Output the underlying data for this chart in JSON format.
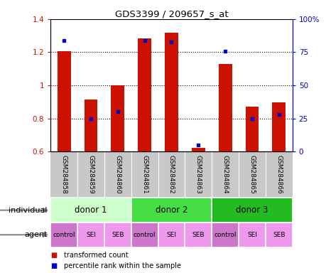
{
  "title": "GDS3399 / 209657_s_at",
  "samples": [
    "GSM284858",
    "GSM284859",
    "GSM284860",
    "GSM284861",
    "GSM284862",
    "GSM284863",
    "GSM284864",
    "GSM284865",
    "GSM284866"
  ],
  "transformed_counts": [
    1.205,
    0.915,
    0.998,
    1.285,
    1.32,
    0.62,
    1.13,
    0.87,
    0.898
  ],
  "percentile_ranks": [
    84,
    25,
    30,
    84,
    83,
    5,
    76,
    25,
    28
  ],
  "bar_bottom": 0.6,
  "ylim_left": [
    0.6,
    1.4
  ],
  "ylim_right": [
    0,
    100
  ],
  "yticks_left": [
    0.6,
    0.8,
    1.0,
    1.2,
    1.4
  ],
  "yticks_right": [
    0,
    25,
    50,
    75,
    100
  ],
  "ytick_labels_right": [
    "0",
    "25",
    "50",
    "75",
    "100%"
  ],
  "bar_color": "#cc1100",
  "percentile_color": "#0000cc",
  "grid_values": [
    0.8,
    1.0,
    1.2
  ],
  "individual_groups": [
    {
      "label": "donor 1",
      "span": [
        0,
        3
      ],
      "color": "#ccffcc"
    },
    {
      "label": "donor 2",
      "span": [
        3,
        6
      ],
      "color": "#44dd44"
    },
    {
      "label": "donor 3",
      "span": [
        6,
        9
      ],
      "color": "#22bb22"
    }
  ],
  "agent_labels": [
    "control",
    "SEI",
    "SEB",
    "control",
    "SEI",
    "SEB",
    "control",
    "SEI",
    "SEB"
  ],
  "agent_color_control": "#cc77cc",
  "agent_color_SEI": "#ee99ee",
  "agent_color_SEB": "#ee99ee",
  "individual_row_label": "individual",
  "agent_row_label": "agent",
  "legend_items": [
    {
      "label": "transformed count",
      "color": "#cc1100"
    },
    {
      "label": "percentile rank within the sample",
      "color": "#0000cc"
    }
  ],
  "bar_width": 0.5,
  "gsm_bg": "#c8c8c8",
  "gsm_sep_color": "#ffffff"
}
